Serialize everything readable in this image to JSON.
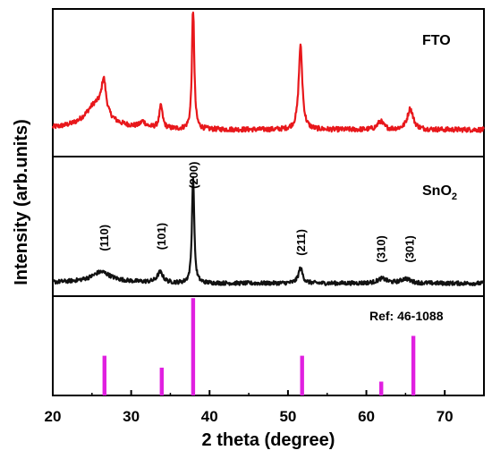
{
  "chart_data": {
    "type": "line",
    "xlabel": "2 theta (degree)",
    "ylabel": "Intensity (arb.units)",
    "xlim": [
      20,
      75
    ],
    "x_ticks": [
      20,
      30,
      40,
      50,
      60,
      70
    ],
    "grid": false,
    "panels": [
      {
        "id": "fto",
        "label": "FTO",
        "color": "#e8171b",
        "baseline": 0.16,
        "noise": 0.035,
        "peaks": [
          {
            "x": 25.5,
            "h": 0.16,
            "w": 1.6
          },
          {
            "x": 26.5,
            "h": 0.24,
            "w": 0.35
          },
          {
            "x": 31.5,
            "h": 0.04,
            "w": 0.4
          },
          {
            "x": 33.8,
            "h": 0.16,
            "w": 0.25
          },
          {
            "x": 37.9,
            "h": 0.9,
            "w": 0.17
          },
          {
            "x": 51.6,
            "h": 0.6,
            "w": 0.28
          },
          {
            "x": 61.8,
            "h": 0.06,
            "w": 0.45
          },
          {
            "x": 65.6,
            "h": 0.15,
            "w": 0.45
          }
        ]
      },
      {
        "id": "sno2",
        "label_main": "SnO",
        "label_sub": "2",
        "color": "#111111",
        "baseline": 0.08,
        "noise": 0.035,
        "peaks": [
          {
            "x": 26.2,
            "h": 0.08,
            "w": 1.4
          },
          {
            "x": 33.7,
            "h": 0.09,
            "w": 0.45
          },
          {
            "x": 37.9,
            "h": 0.94,
            "w": 0.17
          },
          {
            "x": 51.6,
            "h": 0.13,
            "w": 0.33
          },
          {
            "x": 62.0,
            "h": 0.04,
            "w": 0.7
          },
          {
            "x": 65.0,
            "h": 0.04,
            "w": 0.7
          }
        ],
        "hkl": [
          {
            "label": "(110)",
            "x": 26.5,
            "y": 0.36
          },
          {
            "label": "(101)",
            "x": 33.8,
            "y": 0.37
          },
          {
            "label": "(200)",
            "x": 37.9,
            "y": 0.9
          },
          {
            "label": "(211)",
            "x": 51.6,
            "y": 0.32
          },
          {
            "label": "(310)",
            "x": 61.8,
            "y": 0.26
          },
          {
            "label": "(301)",
            "x": 65.5,
            "y": 0.26
          }
        ]
      },
      {
        "id": "ref",
        "label": "Ref: 46-1088",
        "color": "#e020e0",
        "type": "stick",
        "sticks": [
          {
            "x": 26.6,
            "y": 0.4
          },
          {
            "x": 33.9,
            "y": 0.28
          },
          {
            "x": 37.9,
            "y": 0.98
          },
          {
            "x": 51.8,
            "y": 0.4
          },
          {
            "x": 61.9,
            "y": 0.14
          },
          {
            "x": 66.0,
            "y": 0.6
          }
        ]
      }
    ]
  }
}
